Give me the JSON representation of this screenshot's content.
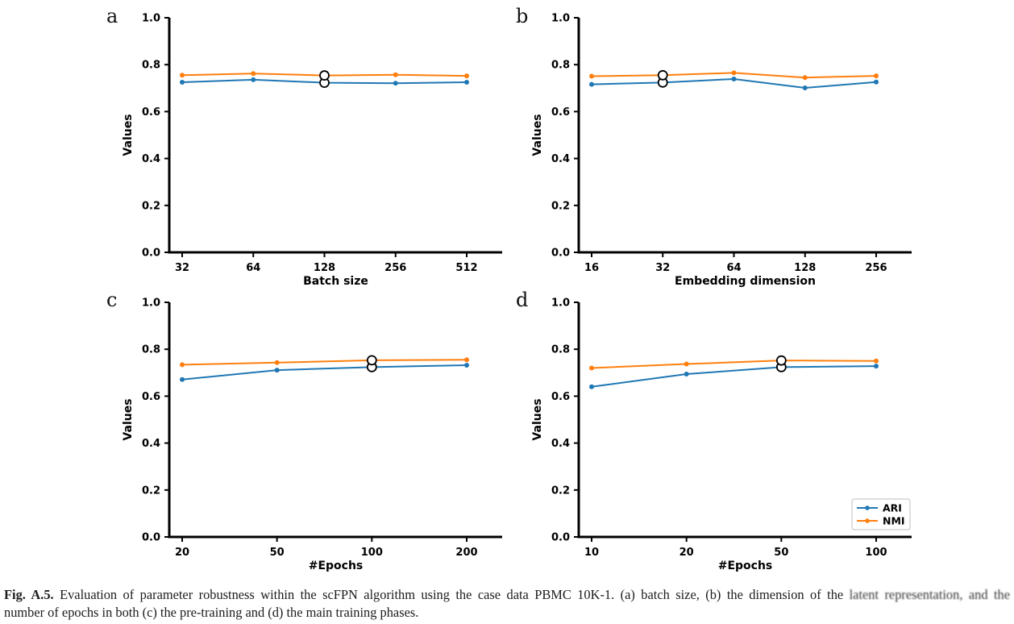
{
  "colors": {
    "ari": "#1f77b4",
    "nmi": "#ff7f0e",
    "highlight_fill": "#ffffff",
    "highlight_stroke": "#000000",
    "axis": "#000000",
    "legend_border": "#cccccc"
  },
  "legend": {
    "items": [
      {
        "label": "ARI",
        "color": "#1f77b4"
      },
      {
        "label": "NMI",
        "color": "#ff7f0e"
      }
    ],
    "position": "lower-right-of-panel-d"
  },
  "chart_data": [
    {
      "panel": "a",
      "type": "line",
      "categories": [
        "32",
        "64",
        "128",
        "256",
        "512"
      ],
      "xlabel": "Batch size",
      "ylabel": "Values",
      "ylim": [
        0.0,
        1.0
      ],
      "yticks": [
        0.0,
        0.2,
        0.4,
        0.6,
        0.8,
        1.0
      ],
      "grid": false,
      "highlight_index": 2,
      "legend_visible": false,
      "series": [
        {
          "name": "ARI",
          "color": "#1f77b4",
          "values": [
            0.725,
            0.736,
            0.723,
            0.721,
            0.725
          ]
        },
        {
          "name": "NMI",
          "color": "#ff7f0e",
          "values": [
            0.755,
            0.762,
            0.754,
            0.757,
            0.752
          ]
        }
      ]
    },
    {
      "panel": "b",
      "type": "line",
      "categories": [
        "16",
        "32",
        "64",
        "128",
        "256"
      ],
      "xlabel": "Embedding dimension",
      "ylabel": "Values",
      "ylim": [
        0.0,
        1.0
      ],
      "yticks": [
        0.0,
        0.2,
        0.4,
        0.6,
        0.8,
        1.0
      ],
      "grid": false,
      "highlight_index": 1,
      "legend_visible": false,
      "series": [
        {
          "name": "ARI",
          "color": "#1f77b4",
          "values": [
            0.716,
            0.724,
            0.739,
            0.701,
            0.726
          ]
        },
        {
          "name": "NMI",
          "color": "#ff7f0e",
          "values": [
            0.751,
            0.755,
            0.765,
            0.745,
            0.752
          ]
        }
      ]
    },
    {
      "panel": "c",
      "type": "line",
      "categories": [
        "20",
        "50",
        "100",
        "200"
      ],
      "xlabel": "#Epochs",
      "ylabel": "Values",
      "ylim": [
        0.0,
        1.0
      ],
      "yticks": [
        0.0,
        0.2,
        0.4,
        0.6,
        0.8,
        1.0
      ],
      "grid": false,
      "highlight_index": 2,
      "legend_visible": false,
      "series": [
        {
          "name": "ARI",
          "color": "#1f77b4",
          "values": [
            0.671,
            0.711,
            0.724,
            0.732
          ]
        },
        {
          "name": "NMI",
          "color": "#ff7f0e",
          "values": [
            0.734,
            0.743,
            0.753,
            0.755
          ]
        }
      ]
    },
    {
      "panel": "d",
      "type": "line",
      "categories": [
        "10",
        "20",
        "50",
        "100"
      ],
      "xlabel": "#Epochs",
      "ylabel": "Values",
      "ylim": [
        0.0,
        1.0
      ],
      "yticks": [
        0.0,
        0.2,
        0.4,
        0.6,
        0.8,
        1.0
      ],
      "grid": false,
      "highlight_index": 2,
      "legend_visible": true,
      "series": [
        {
          "name": "ARI",
          "color": "#1f77b4",
          "values": [
            0.64,
            0.694,
            0.724,
            0.728
          ]
        },
        {
          "name": "NMI",
          "color": "#ff7f0e",
          "values": [
            0.72,
            0.737,
            0.752,
            0.75
          ]
        }
      ]
    }
  ],
  "caption": {
    "label": "Fig. A.5.",
    "line1_start": "Evaluation of parameter robustness within the scFPN algorithm using the case data PBMC 10K-1. (a) batch size, (b) the dimension of the",
    "line1_blurred_end": "latent representation, and the",
    "line2": "number of epochs in both (c) the pre-training and (d) the main training phases."
  }
}
